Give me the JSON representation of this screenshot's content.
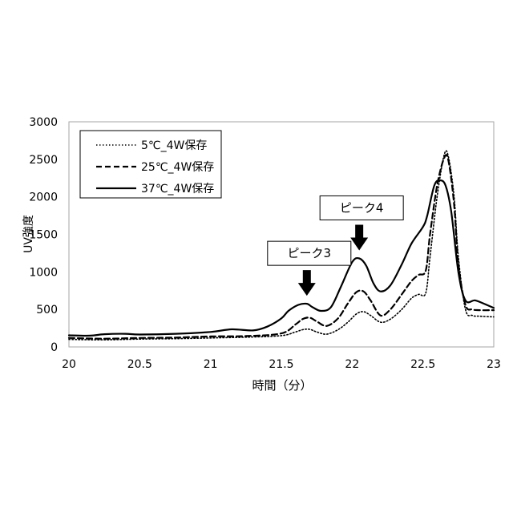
{
  "chart_data": {
    "type": "line",
    "title": "",
    "xlabel": "時間（分）",
    "ylabel": "UV強度",
    "xlim": [
      20,
      23
    ],
    "ylim": [
      0,
      3000
    ],
    "xticks": [
      20,
      20.5,
      21,
      21.5,
      22,
      22.5,
      23
    ],
    "xtick_labels": [
      "20",
      "20.5",
      "21",
      "21.5",
      "22",
      "22.5",
      "23"
    ],
    "yticks": [
      0,
      500,
      1000,
      1500,
      2000,
      2500,
      3000
    ],
    "ytick_labels": [
      "0",
      "500",
      "1000",
      "1500",
      "2000",
      "2500",
      "3000"
    ],
    "grid": {
      "horizontal": false,
      "vertical": false
    },
    "legend_position": "top-left",
    "series": [
      {
        "name": "5℃_4W保存",
        "style": "dotted",
        "color": "#000000",
        "points": [
          [
            20.0,
            100
          ],
          [
            20.25,
            95
          ],
          [
            20.5,
            105
          ],
          [
            20.75,
            110
          ],
          [
            21.0,
            120
          ],
          [
            21.25,
            130
          ],
          [
            21.5,
            150
          ],
          [
            21.6,
            200
          ],
          [
            21.65,
            230
          ],
          [
            21.7,
            235
          ],
          [
            21.75,
            200
          ],
          [
            21.82,
            170
          ],
          [
            21.9,
            230
          ],
          [
            21.97,
            330
          ],
          [
            22.03,
            440
          ],
          [
            22.08,
            470
          ],
          [
            22.13,
            420
          ],
          [
            22.2,
            330
          ],
          [
            22.27,
            370
          ],
          [
            22.35,
            500
          ],
          [
            22.42,
            650
          ],
          [
            22.47,
            700
          ],
          [
            22.52,
            720
          ],
          [
            22.55,
            1200
          ],
          [
            22.6,
            2000
          ],
          [
            22.65,
            2560
          ],
          [
            22.68,
            2530
          ],
          [
            22.72,
            2000
          ],
          [
            22.75,
            1200
          ],
          [
            22.8,
            500
          ],
          [
            22.85,
            420
          ],
          [
            22.9,
            410
          ],
          [
            23.0,
            400
          ]
        ]
      },
      {
        "name": "25℃_4W保存",
        "style": "dashed",
        "color": "#000000",
        "points": [
          [
            20.0,
            120
          ],
          [
            20.25,
            110
          ],
          [
            20.5,
            120
          ],
          [
            20.75,
            125
          ],
          [
            21.0,
            140
          ],
          [
            21.25,
            145
          ],
          [
            21.5,
            180
          ],
          [
            21.6,
            300
          ],
          [
            21.65,
            370
          ],
          [
            21.7,
            390
          ],
          [
            21.75,
            340
          ],
          [
            21.82,
            280
          ],
          [
            21.9,
            380
          ],
          [
            21.97,
            580
          ],
          [
            22.03,
            730
          ],
          [
            22.08,
            740
          ],
          [
            22.13,
            620
          ],
          [
            22.2,
            420
          ],
          [
            22.27,
            500
          ],
          [
            22.35,
            700
          ],
          [
            22.42,
            880
          ],
          [
            22.47,
            960
          ],
          [
            22.52,
            1020
          ],
          [
            22.55,
            1500
          ],
          [
            22.6,
            2150
          ],
          [
            22.65,
            2520
          ],
          [
            22.68,
            2480
          ],
          [
            22.72,
            1900
          ],
          [
            22.75,
            1100
          ],
          [
            22.8,
            560
          ],
          [
            22.85,
            500
          ],
          [
            22.9,
            490
          ],
          [
            23.0,
            490
          ]
        ]
      },
      {
        "name": "37℃_4W保存",
        "style": "solid",
        "color": "#000000",
        "points": [
          [
            20.0,
            155
          ],
          [
            20.15,
            150
          ],
          [
            20.25,
            170
          ],
          [
            20.4,
            175
          ],
          [
            20.5,
            165
          ],
          [
            20.75,
            175
          ],
          [
            21.0,
            200
          ],
          [
            21.15,
            235
          ],
          [
            21.3,
            220
          ],
          [
            21.4,
            270
          ],
          [
            21.5,
            380
          ],
          [
            21.55,
            480
          ],
          [
            21.62,
            560
          ],
          [
            21.68,
            575
          ],
          [
            21.72,
            530
          ],
          [
            21.78,
            480
          ],
          [
            21.85,
            530
          ],
          [
            21.92,
            800
          ],
          [
            22.0,
            1130
          ],
          [
            22.05,
            1180
          ],
          [
            22.1,
            1080
          ],
          [
            22.15,
            850
          ],
          [
            22.2,
            740
          ],
          [
            22.27,
            820
          ],
          [
            22.35,
            1100
          ],
          [
            22.42,
            1380
          ],
          [
            22.5,
            1600
          ],
          [
            22.53,
            1750
          ],
          [
            22.58,
            2150
          ],
          [
            22.62,
            2220
          ],
          [
            22.66,
            2150
          ],
          [
            22.7,
            1800
          ],
          [
            22.75,
            1000
          ],
          [
            22.8,
            620
          ],
          [
            22.87,
            620
          ],
          [
            22.95,
            560
          ],
          [
            23.0,
            520
          ]
        ]
      }
    ],
    "annotations": [
      {
        "label": "ピーク3",
        "x": 21.68,
        "y": 575,
        "arrow": "down"
      },
      {
        "label": "ピーク4",
        "x": 22.05,
        "y": 1180,
        "arrow": "down"
      }
    ]
  }
}
